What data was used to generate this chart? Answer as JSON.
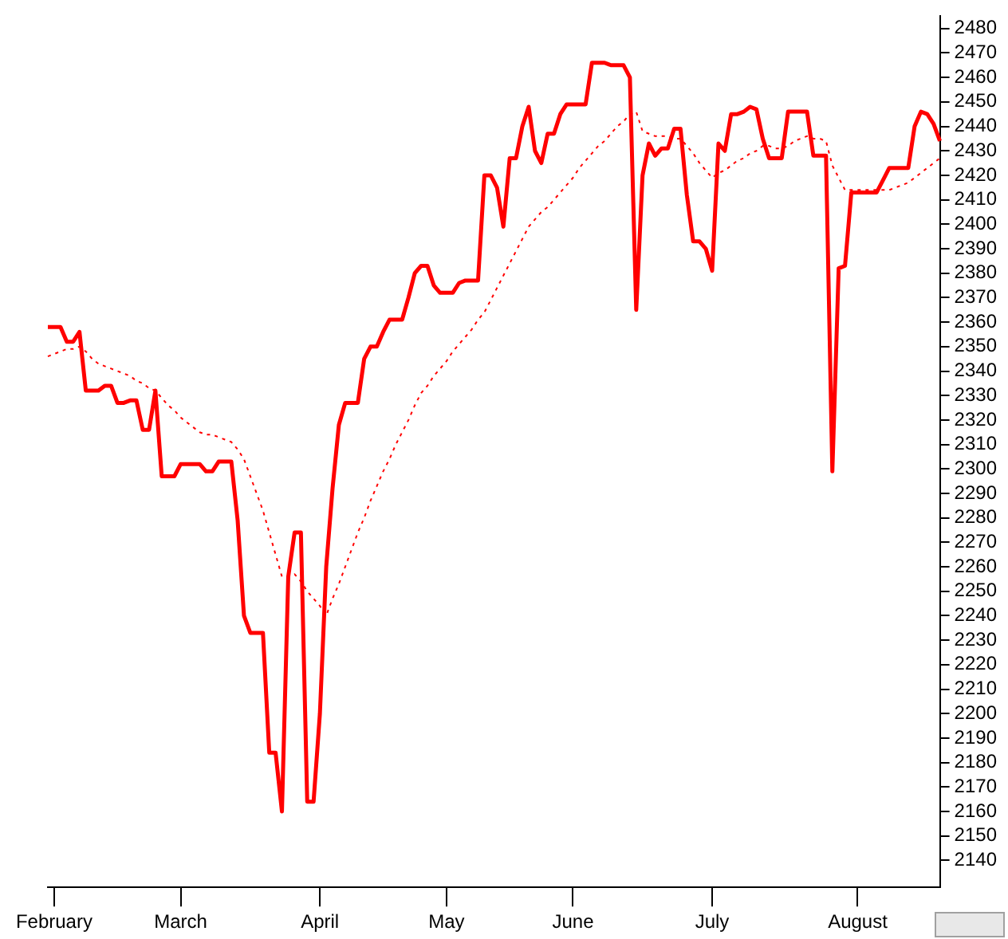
{
  "chart_data": {
    "type": "line",
    "categories": [
      null,
      "February",
      null,
      null,
      null,
      null,
      null,
      null,
      null,
      null,
      null,
      null,
      null,
      null,
      null,
      null,
      null,
      null,
      null,
      null,
      null,
      "March",
      null,
      null,
      null,
      null,
      null,
      null,
      null,
      null,
      null,
      null,
      null,
      null,
      null,
      null,
      null,
      null,
      null,
      null,
      null,
      null,
      null,
      "April",
      null,
      null,
      null,
      null,
      null,
      null,
      null,
      null,
      null,
      null,
      null,
      null,
      null,
      null,
      null,
      null,
      null,
      null,
      null,
      "May",
      null,
      null,
      null,
      null,
      null,
      null,
      null,
      null,
      null,
      null,
      null,
      null,
      null,
      null,
      null,
      null,
      null,
      null,
      null,
      "June",
      null,
      null,
      null,
      null,
      null,
      null,
      null,
      null,
      null,
      null,
      null,
      null,
      null,
      null,
      null,
      null,
      null,
      null,
      null,
      null,
      null,
      "July",
      null,
      null,
      null,
      null,
      null,
      null,
      null,
      null,
      null,
      null,
      null,
      null,
      null,
      null,
      null,
      null,
      null,
      null,
      null,
      null,
      null,
      null,
      "August",
      null,
      null,
      null,
      null,
      null,
      null,
      null,
      null,
      null,
      null,
      null,
      null,
      null
    ],
    "series": [
      {
        "color": "#ff0000",
        "line_style": "solid",
        "values": [
          2358,
          2358,
          2358,
          2352,
          2352,
          2356,
          2332,
          2332,
          2332,
          2334,
          2334,
          2327,
          2327,
          2328,
          2328,
          2316,
          2316,
          2332,
          2297,
          2297,
          2297,
          2302,
          2302,
          2302,
          2302,
          2299,
          2299,
          2303,
          2303,
          2303,
          2279,
          2240,
          2233,
          2233,
          2233,
          2184,
          2184,
          2160,
          2256,
          2274,
          2274,
          2164,
          2164,
          2200,
          2260,
          2292,
          2318,
          2327,
          2327,
          2327,
          2345,
          2350,
          2350,
          2356,
          2361,
          2361,
          2361,
          2370,
          2380,
          2383,
          2383,
          2375,
          2372,
          2372,
          2372,
          2376,
          2377,
          2377,
          2377,
          2420,
          2420,
          2415,
          2399,
          2427,
          2427,
          2440,
          2448,
          2430,
          2425,
          2437,
          2437,
          2445,
          2449,
          2449,
          2449,
          2449,
          2466,
          2466,
          2466,
          2465,
          2465,
          2465,
          2460,
          2365,
          2420,
          2433,
          2428,
          2431,
          2431,
          2439,
          2439,
          2412,
          2393,
          2393,
          2390,
          2381,
          2433,
          2430,
          2445,
          2445,
          2446,
          2448,
          2447,
          2435,
          2427,
          2427,
          2427,
          2446,
          2446,
          2446,
          2446,
          2428,
          2428,
          2428,
          2299,
          2382,
          2383,
          2413,
          2413,
          2413,
          2413,
          2413,
          2418,
          2423,
          2423,
          2423,
          2423,
          2440,
          2446,
          2445,
          2441,
          2434
        ]
      },
      {
        "color": "#ff0000",
        "line_style": "dotted",
        "values": [
          2346,
          2347,
          2348,
          2349,
          2349,
          2350,
          2348,
          2345,
          2343,
          2342,
          2341,
          2340,
          2339,
          2338,
          2336,
          2335,
          2333,
          2332,
          2329,
          2326,
          2324,
          2321,
          2319,
          2317,
          2315,
          2314,
          2314,
          2313,
          2312,
          2311,
          2308,
          2304,
          2297,
          2290,
          2283,
          2274,
          2265,
          2256,
          2256,
          2257,
          2254,
          2250,
          2247,
          2244,
          2240,
          2247,
          2253,
          2260,
          2267,
          2274,
          2280,
          2287,
          2293,
          2299,
          2304,
          2310,
          2315,
          2320,
          2326,
          2331,
          2334,
          2338,
          2341,
          2344,
          2348,
          2351,
          2354,
          2357,
          2361,
          2364,
          2369,
          2374,
          2379,
          2384,
          2389,
          2394,
          2399,
          2402,
          2405,
          2407,
          2410,
          2413,
          2416,
          2419,
          2423,
          2426,
          2429,
          2432,
          2434,
          2437,
          2440,
          2442,
          2445,
          2446,
          2438,
          2437,
          2436,
          2436,
          2436,
          2435,
          2435,
          2432,
          2429,
          2425,
          2422,
          2419,
          2421,
          2422,
          2424,
          2426,
          2427,
          2429,
          2430,
          2432,
          2432,
          2431,
          2431,
          2432,
          2434,
          2435,
          2436,
          2435,
          2435,
          2434,
          2424,
          2419,
          2414,
          2414,
          2414,
          2414,
          2414,
          2414,
          2414,
          2414,
          2415,
          2416,
          2417,
          2419,
          2421,
          2423,
          2425,
          2427
        ]
      }
    ],
    "ylim": [
      2129,
      2485
    ],
    "yticks": [
      2140,
      2150,
      2160,
      2170,
      2180,
      2190,
      2200,
      2210,
      2220,
      2230,
      2240,
      2250,
      2260,
      2270,
      2280,
      2290,
      2300,
      2310,
      2320,
      2330,
      2340,
      2350,
      2360,
      2370,
      2380,
      2390,
      2400,
      2410,
      2420,
      2430,
      2440,
      2450,
      2460,
      2470,
      2480
    ],
    "grid": false,
    "legend": false,
    "marker": "none"
  }
}
